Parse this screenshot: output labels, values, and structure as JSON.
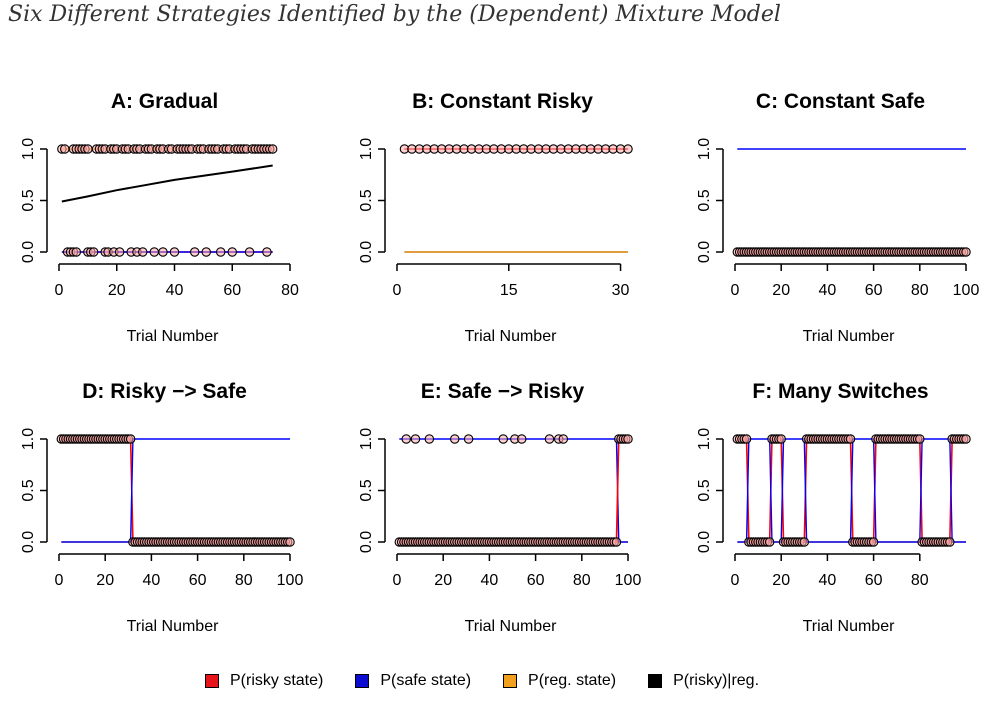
{
  "title": "Six Different Strategies Identified by the (Dependent) Mixture Model",
  "colors": {
    "risky": "#ff0000",
    "safe": "#0000ff",
    "reg": "#ffa500",
    "riskyreg": "#000000",
    "point_fill": "#f4a9a8"
  },
  "legend": [
    {
      "label": "P(risky state)",
      "color": "#e8141c"
    },
    {
      "label": "P(safe state)",
      "color": "#0c0cd0"
    },
    {
      "label": "P(reg. state)",
      "color": "#f0a01c"
    },
    {
      "label": "P(risky)|reg.",
      "color": "#000000"
    }
  ],
  "chart_data": [
    {
      "type": "line",
      "title": "A: Gradual",
      "xlabel": "Trial Number",
      "xlim": [
        0,
        80
      ],
      "ylim": [
        0,
        1
      ],
      "xticks": [
        0,
        20,
        40,
        60,
        80
      ],
      "yticks": [
        "0.0",
        "0.5",
        "1.0"
      ],
      "x": [
        1,
        74
      ],
      "series": [
        {
          "name": "P(risky state)",
          "color": "#ff0000",
          "segments": [
            [
              1,
              0
            ],
            [
              74,
              0
            ]
          ]
        },
        {
          "name": "P(safe state)",
          "color": "#0000ff",
          "segments": [
            [
              1,
              0
            ],
            [
              74,
              0
            ]
          ]
        },
        {
          "name": "P(reg. state)",
          "color": "#ffa500",
          "segments": [
            [
              1,
              1
            ],
            [
              74,
              1
            ]
          ]
        },
        {
          "name": "P(risky)|reg.",
          "color": "#000000",
          "curve": [
            [
              1,
              0.49
            ],
            [
              10,
              0.54
            ],
            [
              20,
              0.6
            ],
            [
              30,
              0.65
            ],
            [
              40,
              0.7
            ],
            [
              50,
              0.74
            ],
            [
              60,
              0.78
            ],
            [
              74,
              0.84
            ]
          ]
        }
      ],
      "choices_risky": [
        1,
        2,
        5,
        6,
        7,
        8,
        9,
        10,
        13,
        14,
        15,
        16,
        18,
        19,
        20,
        22,
        23,
        24,
        26,
        27,
        28,
        30,
        31,
        32,
        34,
        35,
        36,
        38,
        39,
        41,
        42,
        43,
        44,
        45,
        46,
        48,
        49,
        50,
        52,
        53,
        54,
        55,
        57,
        58,
        59,
        61,
        62,
        63,
        64,
        65,
        67,
        68,
        69,
        70,
        71,
        72,
        73,
        74
      ],
      "choices_safe": [
        3,
        4,
        5,
        6,
        10,
        11,
        12,
        16,
        17,
        19,
        21,
        25,
        27,
        29,
        33,
        36,
        40,
        47,
        51,
        56,
        60,
        66,
        72
      ]
    },
    {
      "type": "line",
      "title": "B: Constant Risky",
      "xlabel": "Trial Number",
      "xlim": [
        0,
        31
      ],
      "ylim": [
        0,
        1
      ],
      "xticks": [
        0,
        15,
        30
      ],
      "yticks": [
        "0.0",
        "0.5",
        "1.0"
      ],
      "series": [
        {
          "name": "P(risky state)",
          "color": "#ff0000",
          "segments": [
            [
              1,
              1
            ],
            [
              31,
              1
            ]
          ]
        },
        {
          "name": "P(safe state)",
          "color": "#0000ff",
          "segments": [
            [
              1,
              0
            ],
            [
              31,
              0
            ]
          ]
        },
        {
          "name": "P(reg. state)",
          "color": "#ffa500",
          "segments": [
            [
              1,
              0
            ],
            [
              31,
              0
            ]
          ]
        }
      ],
      "choices_risky": [
        1,
        2,
        3,
        4,
        5,
        6,
        7,
        8,
        9,
        10,
        11,
        12,
        13,
        14,
        15,
        16,
        17,
        18,
        19,
        20,
        21,
        22,
        23,
        24,
        25,
        26,
        27,
        28,
        29,
        30,
        31
      ],
      "choices_safe": []
    },
    {
      "type": "line",
      "title": "C: Constant Safe",
      "xlabel": "Trial Number",
      "xlim": [
        0,
        100
      ],
      "ylim": [
        0,
        1
      ],
      "xticks": [
        0,
        20,
        40,
        60,
        80,
        100
      ],
      "yticks": [
        "0.0",
        "0.5",
        "1.0"
      ],
      "series": [
        {
          "name": "P(safe state)",
          "color": "#0000ff",
          "segments": [
            [
              1,
              1
            ],
            [
              100,
              1
            ]
          ]
        },
        {
          "name": "P(reg. state)",
          "color": "#ffa500",
          "segments": [
            [
              1,
              0
            ],
            [
              100,
              0
            ]
          ]
        },
        {
          "name": "P(risky state)",
          "color": "#ff0000",
          "segments": [
            [
              1,
              0
            ],
            [
              100,
              0
            ]
          ]
        }
      ],
      "choices_risky": [],
      "choices_safe": "all"
    },
    {
      "type": "line",
      "title": "D: Risky −> Safe",
      "xlabel": "Trial Number",
      "xlim": [
        0,
        100
      ],
      "ylim": [
        0,
        1
      ],
      "xticks": [
        0,
        20,
        40,
        60,
        80,
        100
      ],
      "yticks": [
        "0.0",
        "0.5",
        "1.0"
      ],
      "series": [
        {
          "name": "P(reg. state)",
          "color": "#ffa500",
          "segments": [
            [
              1,
              0
            ],
            [
              100,
              0
            ]
          ]
        },
        {
          "name": "P(risky state)",
          "color": "#ff0000",
          "segments": [
            [
              1,
              1
            ],
            [
              31,
              1
            ],
            [
              32,
              0
            ],
            [
              100,
              0
            ]
          ]
        },
        {
          "name": "P(safe state)",
          "color": "#0000ff",
          "segments": [
            [
              1,
              0
            ],
            [
              31,
              0
            ],
            [
              32,
              1
            ],
            [
              100,
              1
            ]
          ]
        }
      ],
      "choices_risky": "1-31",
      "choices_safe": "32-100"
    },
    {
      "type": "line",
      "title": "E: Safe −> Risky",
      "xlabel": "Trial Number",
      "xlim": [
        0,
        100
      ],
      "ylim": [
        0,
        1
      ],
      "xticks": [
        0,
        20,
        40,
        60,
        80,
        100
      ],
      "yticks": [
        "0.0",
        "0.5",
        "1.0"
      ],
      "series": [
        {
          "name": "P(reg. state)",
          "color": "#ffa500",
          "segments": [
            [
              1,
              0
            ],
            [
              100,
              0
            ]
          ]
        },
        {
          "name": "P(safe state)",
          "color": "#0000ff",
          "segments": [
            [
              1,
              1
            ],
            [
              95,
              1
            ],
            [
              96,
              0
            ],
            [
              100,
              0
            ]
          ]
        },
        {
          "name": "P(risky state)",
          "color": "#ff0000",
          "segments": [
            [
              1,
              0
            ],
            [
              95,
              0
            ],
            [
              96,
              1
            ],
            [
              100,
              1
            ]
          ]
        }
      ],
      "choices_risky": [
        4,
        8,
        14,
        25,
        31,
        46,
        51,
        54,
        66,
        70,
        72,
        96,
        97,
        98,
        99,
        100
      ],
      "choices_safe": "1-95"
    },
    {
      "type": "line",
      "title": "F: Many Switches",
      "xlabel": "Trial Number",
      "xlim": [
        0,
        100
      ],
      "ylim": [
        0,
        1
      ],
      "xticks": [
        0,
        20,
        40,
        60,
        80
      ],
      "yticks": [
        "0.0",
        "0.5",
        "1.0"
      ],
      "series": [
        {
          "name": "P(reg. state)",
          "color": "#ffa500",
          "segments": [
            [
              1,
              0
            ],
            [
              100,
              0
            ]
          ]
        },
        {
          "name": "P(risky state)",
          "color": "#ff0000",
          "segments": [
            [
              1,
              1
            ],
            [
              5,
              1
            ],
            [
              6,
              0
            ],
            [
              15,
              0
            ],
            [
              16,
              1
            ],
            [
              20,
              1
            ],
            [
              21,
              0
            ],
            [
              30,
              0
            ],
            [
              31,
              1
            ],
            [
              50,
              1
            ],
            [
              51,
              0
            ],
            [
              60,
              0
            ],
            [
              61,
              1
            ],
            [
              80,
              1
            ],
            [
              81,
              0
            ],
            [
              93,
              0
            ],
            [
              94,
              1
            ],
            [
              100,
              1
            ]
          ]
        },
        {
          "name": "P(safe state)",
          "color": "#0000ff",
          "segments": [
            [
              1,
              0
            ],
            [
              5,
              0
            ],
            [
              6,
              1
            ],
            [
              15,
              1
            ],
            [
              16,
              0
            ],
            [
              20,
              0
            ],
            [
              21,
              1
            ],
            [
              30,
              1
            ],
            [
              31,
              0
            ],
            [
              50,
              0
            ],
            [
              51,
              1
            ],
            [
              60,
              1
            ],
            [
              61,
              0
            ],
            [
              80,
              0
            ],
            [
              81,
              1
            ],
            [
              93,
              1
            ],
            [
              94,
              0
            ],
            [
              100,
              0
            ]
          ]
        }
      ],
      "choices_risky": "1-5,16-20,31-50,61-80,94-100",
      "choices_safe": "6-15,21-30,51-60,81-93"
    }
  ]
}
